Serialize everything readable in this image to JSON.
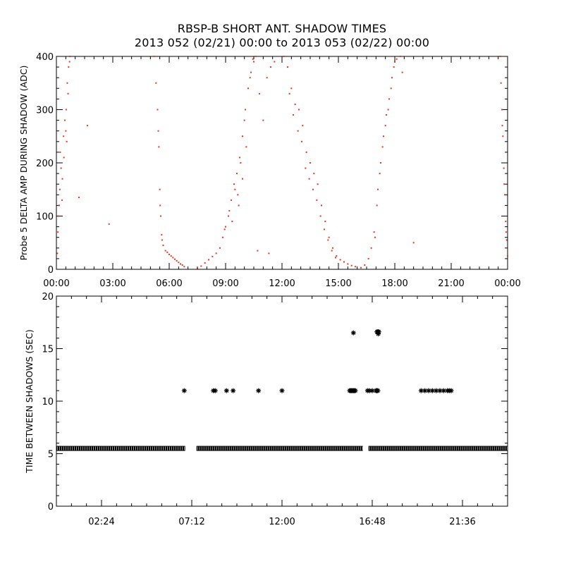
{
  "title_line1": "RBSP-B SHORT ANT. SHADOW TIMES",
  "title_line2": "2013 052 (02/21) 00:00 to 2013 053 (02/22) 00:00",
  "colors": {
    "top_series": "#e8341c",
    "bottom_series": "#000000",
    "axes": "#000000"
  },
  "chart_data": [
    {
      "type": "scatter",
      "ylabel": "Probe 5 DELTA AMP DURING SHADOW (ADC)",
      "xlabel": "",
      "x_unit": "hours",
      "xlim": [
        0,
        24
      ],
      "ylim": [
        0,
        400
      ],
      "yticks": [
        {
          "value": 0,
          "label": "0"
        },
        {
          "value": 100,
          "label": "100"
        },
        {
          "value": 200,
          "label": "200"
        },
        {
          "value": 300,
          "label": "300"
        },
        {
          "value": 400,
          "label": "400"
        }
      ],
      "xticks": [
        {
          "value": 0,
          "label": "00:00"
        },
        {
          "value": 3,
          "label": "03:00"
        },
        {
          "value": 6,
          "label": "06:00"
        },
        {
          "value": 9,
          "label": "09:00"
        },
        {
          "value": 12,
          "label": "12:00"
        },
        {
          "value": 15,
          "label": "15:00"
        },
        {
          "value": 18,
          "label": "18:00"
        },
        {
          "value": 21,
          "label": "21:00"
        },
        {
          "value": 24,
          "label": "00:00"
        }
      ],
      "grid": false,
      "series": [
        {
          "points": [
            [
              0.05,
              30
            ],
            [
              0.08,
              70
            ],
            [
              0.12,
              100
            ],
            [
              0.18,
              150
            ],
            [
              0.25,
              190
            ],
            [
              0.32,
              170
            ],
            [
              0.38,
              250
            ],
            [
              0.45,
              280
            ],
            [
              0.52,
              300
            ],
            [
              0.58,
              350
            ],
            [
              0.65,
              380
            ],
            [
              0.72,
              400
            ],
            [
              0.2,
              220
            ],
            [
              0.3,
              130
            ],
            [
              0.4,
              210
            ],
            [
              0.5,
              260
            ],
            [
              0.62,
              330
            ],
            [
              0.7,
              390
            ],
            [
              0.15,
              120
            ],
            [
              0.55,
              240
            ],
            [
              1.2,
              135
            ],
            [
              1.65,
              270
            ],
            [
              2.8,
              85
            ],
            [
              5.2,
              400
            ],
            [
              5.3,
              350
            ],
            [
              5.38,
              300
            ],
            [
              5.45,
              230
            ],
            [
              5.5,
              150
            ],
            [
              5.55,
              100
            ],
            [
              5.6,
              65
            ],
            [
              5.68,
              45
            ],
            [
              5.8,
              35
            ],
            [
              6.0,
              28
            ],
            [
              6.2,
              22
            ],
            [
              6.4,
              16
            ],
            [
              6.6,
              10
            ],
            [
              6.8,
              5
            ],
            [
              5.42,
              260
            ],
            [
              5.52,
              120
            ],
            [
              5.62,
              55
            ],
            [
              5.9,
              32
            ],
            [
              6.1,
              25
            ],
            [
              6.3,
              19
            ],
            [
              6.5,
              13
            ],
            [
              6.7,
              8
            ],
            [
              7.5,
              2
            ],
            [
              7.7,
              6
            ],
            [
              7.9,
              12
            ],
            [
              8.1,
              18
            ],
            [
              8.3,
              24
            ],
            [
              8.5,
              30
            ],
            [
              8.7,
              40
            ],
            [
              8.85,
              60
            ],
            [
              9.0,
              80
            ],
            [
              9.15,
              100
            ],
            [
              9.3,
              130
            ],
            [
              9.45,
              160
            ],
            [
              9.6,
              180
            ],
            [
              9.75,
              210
            ],
            [
              9.9,
              250
            ],
            [
              10.05,
              300
            ],
            [
              10.2,
              340
            ],
            [
              10.35,
              370
            ],
            [
              10.5,
              390
            ],
            [
              10.6,
              400
            ],
            [
              8.95,
              75
            ],
            [
              9.2,
              110
            ],
            [
              9.5,
              150
            ],
            [
              9.8,
              200
            ],
            [
              10.0,
              280
            ],
            [
              10.3,
              360
            ],
            [
              9.35,
              90
            ],
            [
              9.65,
              140
            ],
            [
              9.9,
              170
            ],
            [
              10.1,
              230
            ],
            [
              9.7,
              120
            ],
            [
              10.45,
              395
            ],
            [
              10.8,
              330
            ],
            [
              11.0,
              280
            ],
            [
              11.2,
              360
            ],
            [
              11.4,
              380
            ],
            [
              11.6,
              390
            ],
            [
              10.7,
              35
            ],
            [
              11.3,
              30
            ],
            [
              12.1,
              400
            ],
            [
              12.3,
              380
            ],
            [
              12.5,
              340
            ],
            [
              12.7,
              310
            ],
            [
              12.9,
              300
            ],
            [
              13.1,
              270
            ],
            [
              13.3,
              220
            ],
            [
              13.5,
              200
            ],
            [
              13.7,
              180
            ],
            [
              13.9,
              160
            ],
            [
              14.1,
              120
            ],
            [
              14.3,
              90
            ],
            [
              14.5,
              60
            ],
            [
              14.7,
              40
            ],
            [
              14.9,
              25
            ],
            [
              15.1,
              18
            ],
            [
              15.3,
              14
            ],
            [
              15.5,
              10
            ],
            [
              15.7,
              7
            ],
            [
              15.9,
              5
            ],
            [
              12.4,
              330
            ],
            [
              12.6,
              290
            ],
            [
              12.85,
              260
            ],
            [
              13.05,
              240
            ],
            [
              13.25,
              190
            ],
            [
              13.45,
              170
            ],
            [
              13.65,
              150
            ],
            [
              13.85,
              130
            ],
            [
              14.05,
              100
            ],
            [
              14.25,
              75
            ],
            [
              14.45,
              55
            ],
            [
              14.65,
              35
            ],
            [
              14.85,
              22
            ],
            [
              16.2,
              3
            ],
            [
              16.4,
              8
            ],
            [
              16.6,
              20
            ],
            [
              16.75,
              40
            ],
            [
              16.9,
              70
            ],
            [
              17.05,
              120
            ],
            [
              17.2,
              180
            ],
            [
              17.35,
              230
            ],
            [
              17.5,
              270
            ],
            [
              17.65,
              300
            ],
            [
              17.8,
              340
            ],
            [
              17.95,
              380
            ],
            [
              18.1,
              395
            ],
            [
              18.3,
              400
            ],
            [
              16.95,
              60
            ],
            [
              17.1,
              150
            ],
            [
              17.25,
              200
            ],
            [
              17.4,
              250
            ],
            [
              17.55,
              290
            ],
            [
              17.7,
              320
            ],
            [
              17.85,
              360
            ],
            [
              18.0,
              390
            ],
            [
              18.4,
              370
            ],
            [
              19.0,
              50
            ],
            [
              23.6,
              400
            ],
            [
              23.65,
              350
            ],
            [
              23.7,
              300
            ],
            [
              23.75,
              250
            ],
            [
              23.8,
              190
            ],
            [
              23.85,
              140
            ],
            [
              23.9,
              90
            ],
            [
              23.95,
              55
            ],
            [
              24.0,
              25
            ],
            [
              23.72,
              270
            ],
            [
              23.82,
              160
            ],
            [
              23.92,
              70
            ]
          ]
        }
      ]
    },
    {
      "type": "scatter",
      "ylabel": "TIME BETWEEN SHADOWS (SEC)",
      "xlabel": "",
      "x_unit": "hours",
      "xlim": [
        0,
        24
      ],
      "ylim": [
        0,
        20
      ],
      "yticks": [
        {
          "value": 0,
          "label": "0"
        },
        {
          "value": 5,
          "label": "5"
        },
        {
          "value": 10,
          "label": "10"
        },
        {
          "value": 15,
          "label": "15"
        },
        {
          "value": 20,
          "label": "20"
        }
      ],
      "xticks": [
        {
          "value": 2.4,
          "label": "02:24"
        },
        {
          "value": 7.2,
          "label": "07:12"
        },
        {
          "value": 12.0,
          "label": "12:00"
        },
        {
          "value": 16.8,
          "label": "16:48"
        },
        {
          "value": 21.6,
          "label": "21:36"
        }
      ],
      "grid": false,
      "marker": "asterisk",
      "baseline": {
        "y": 5.5,
        "x_ranges": [
          [
            0,
            6.85
          ],
          [
            7.45,
            16.3
          ],
          [
            16.6,
            24
          ]
        ]
      },
      "series": [
        {
          "points": [
            [
              6.8,
              11
            ],
            [
              8.35,
              11
            ],
            [
              8.45,
              11
            ],
            [
              9.05,
              11
            ],
            [
              9.4,
              11
            ],
            [
              10.75,
              11
            ],
            [
              12.0,
              11
            ],
            [
              15.6,
              11
            ],
            [
              15.65,
              11
            ],
            [
              15.7,
              11
            ],
            [
              15.75,
              11
            ],
            [
              15.8,
              11
            ],
            [
              15.85,
              11
            ],
            [
              15.9,
              11
            ],
            [
              15.8,
              16.5
            ],
            [
              16.55,
              11
            ],
            [
              16.65,
              11
            ],
            [
              16.8,
              11
            ],
            [
              17.0,
              11
            ],
            [
              17.05,
              11
            ],
            [
              17.1,
              11
            ],
            [
              17.05,
              16.6
            ],
            [
              17.1,
              16.6
            ],
            [
              17.15,
              16.6
            ],
            [
              17.12,
              16.4
            ],
            [
              19.4,
              11
            ],
            [
              19.6,
              11
            ],
            [
              19.8,
              11
            ],
            [
              20.0,
              11
            ],
            [
              20.2,
              11
            ],
            [
              20.4,
              11
            ],
            [
              20.6,
              11
            ],
            [
              20.8,
              11
            ],
            [
              20.9,
              11
            ],
            [
              21.0,
              11
            ]
          ]
        }
      ]
    }
  ]
}
